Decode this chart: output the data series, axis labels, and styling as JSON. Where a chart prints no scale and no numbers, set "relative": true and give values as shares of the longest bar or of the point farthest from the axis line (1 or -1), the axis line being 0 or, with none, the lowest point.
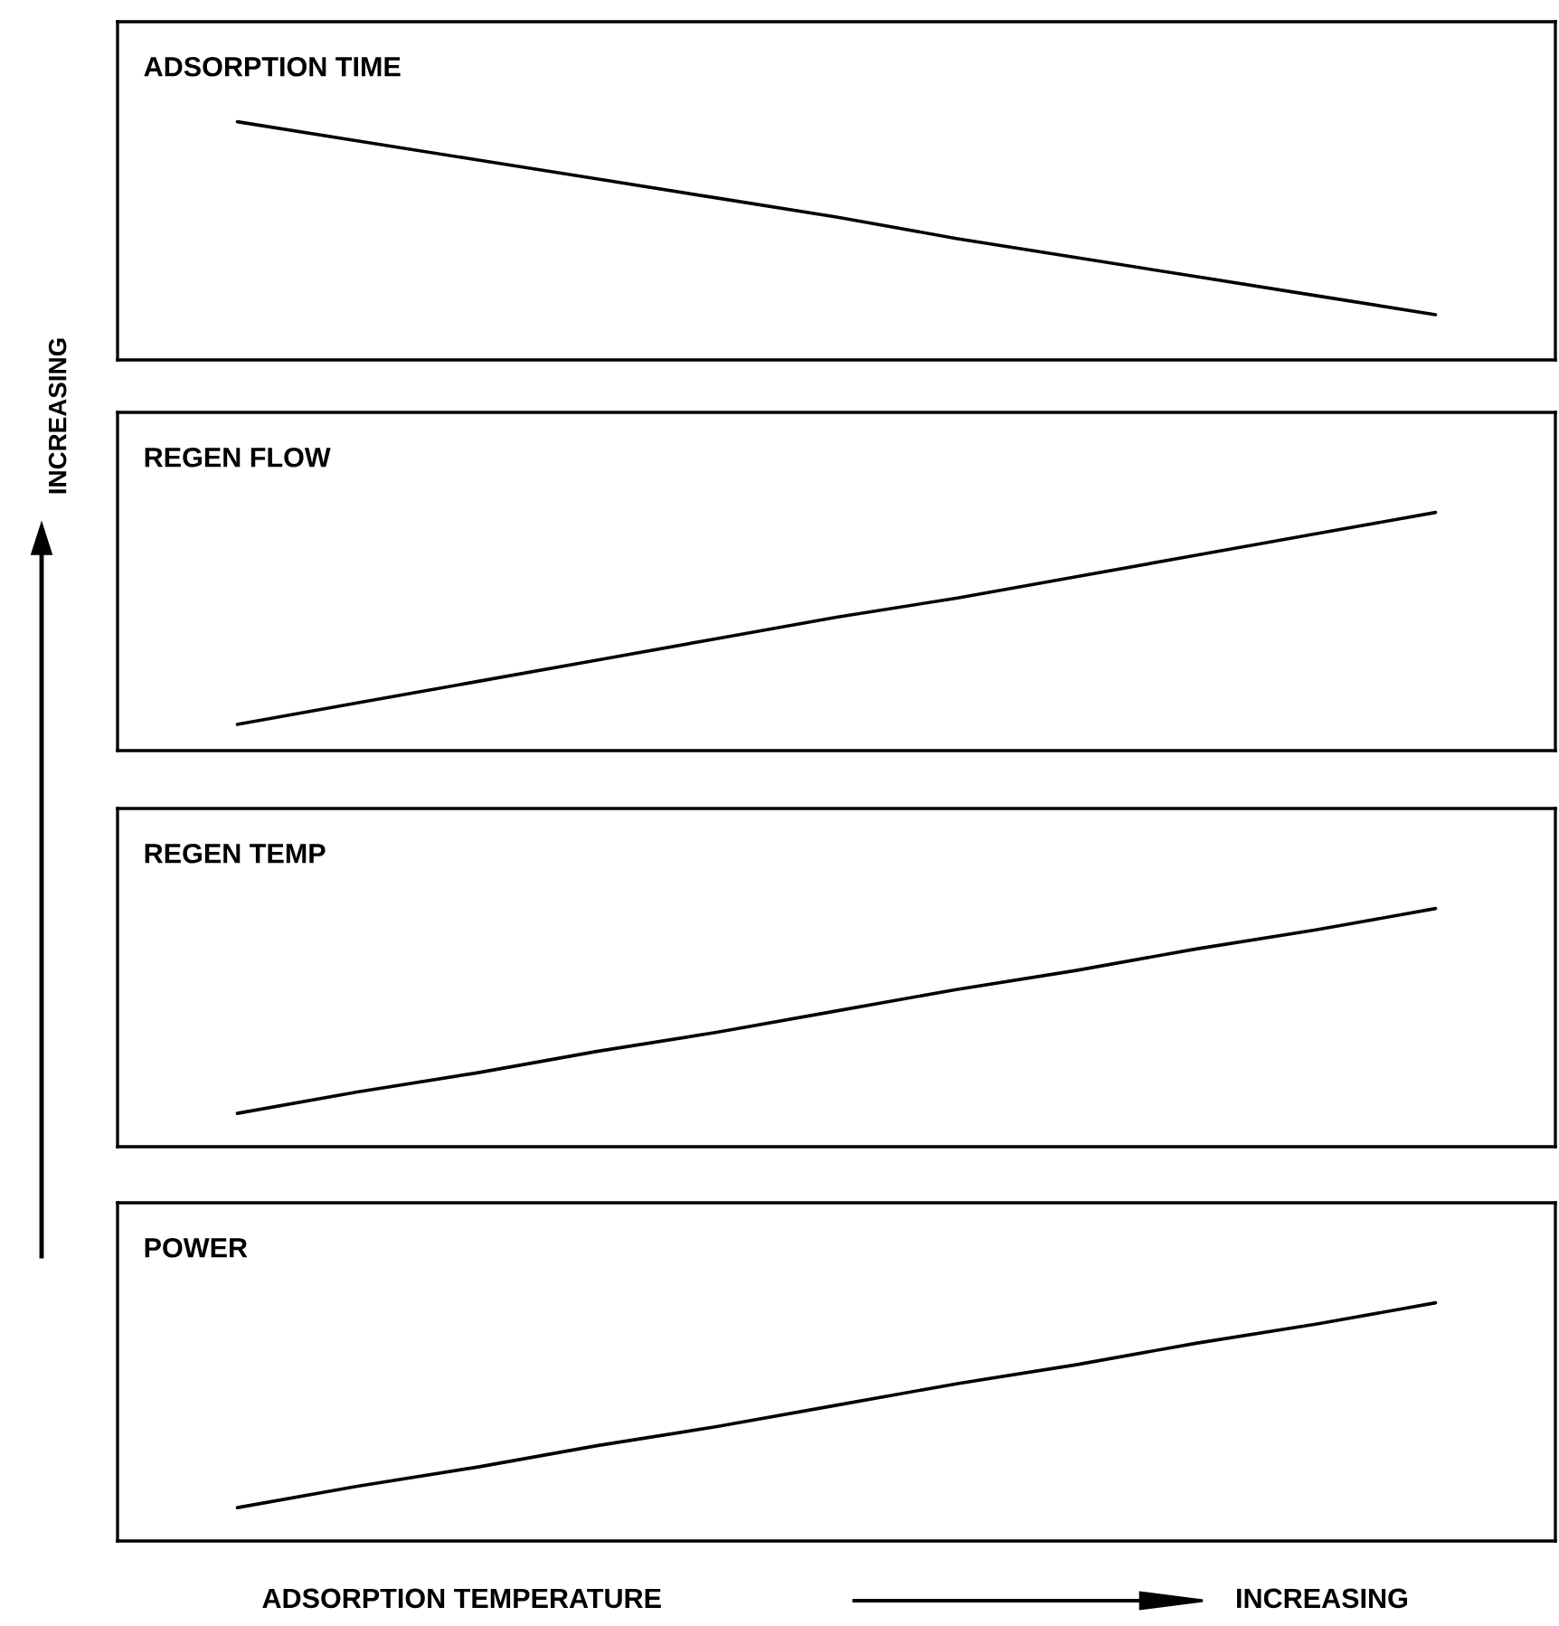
{
  "chart_data": [
    {
      "type": "line",
      "title": "ADSORPTION TIME",
      "ylabel": "INCREASING",
      "categories": [
        null,
        null,
        null,
        null,
        null,
        null,
        null,
        null,
        null,
        null,
        null,
        null,
        null
      ],
      "relative": true,
      "series": [
        {
          "color": "#000000",
          "values": [
            null,
            1,
            0.92,
            0.84,
            0.76,
            0.68,
            0.6,
            0.51,
            0.43,
            0.35,
            0.27,
            0.19,
            null
          ]
        }
      ]
    },
    {
      "type": "line",
      "title": "REGEN FLOW",
      "categories": [
        null,
        null,
        null,
        null,
        null,
        null,
        null,
        null,
        null,
        null,
        null,
        null,
        null
      ],
      "relative": true,
      "series": [
        {
          "color": "#000000",
          "values": [
            null,
            0.11,
            0.2,
            0.29,
            0.38,
            0.47,
            0.56,
            0.64,
            0.73,
            0.82,
            0.91,
            1,
            null
          ]
        }
      ]
    },
    {
      "type": "line",
      "title": "REGEN TEMP",
      "categories": [
        null,
        null,
        null,
        null,
        null,
        null,
        null,
        null,
        null,
        null,
        null,
        null,
        null
      ],
      "relative": true,
      "series": [
        {
          "color": "#000000",
          "values": [
            null,
            0.14,
            0.23,
            0.31,
            0.4,
            0.48,
            0.57,
            0.66,
            0.74,
            0.83,
            0.91,
            1,
            null
          ]
        }
      ]
    },
    {
      "type": "line",
      "title": "POWER",
      "xlabel": "ADSORPTION TEMPERATURE",
      "annotations": [
        "INCREASING"
      ],
      "categories": [
        null,
        null,
        null,
        null,
        null,
        null,
        null,
        null,
        null,
        null,
        null,
        null,
        null
      ],
      "relative": true,
      "series": [
        {
          "color": "#000000",
          "values": [
            null,
            0.14,
            0.23,
            0.31,
            0.4,
            0.48,
            0.57,
            0.66,
            0.74,
            0.83,
            0.91,
            1,
            null
          ]
        }
      ]
    }
  ]
}
